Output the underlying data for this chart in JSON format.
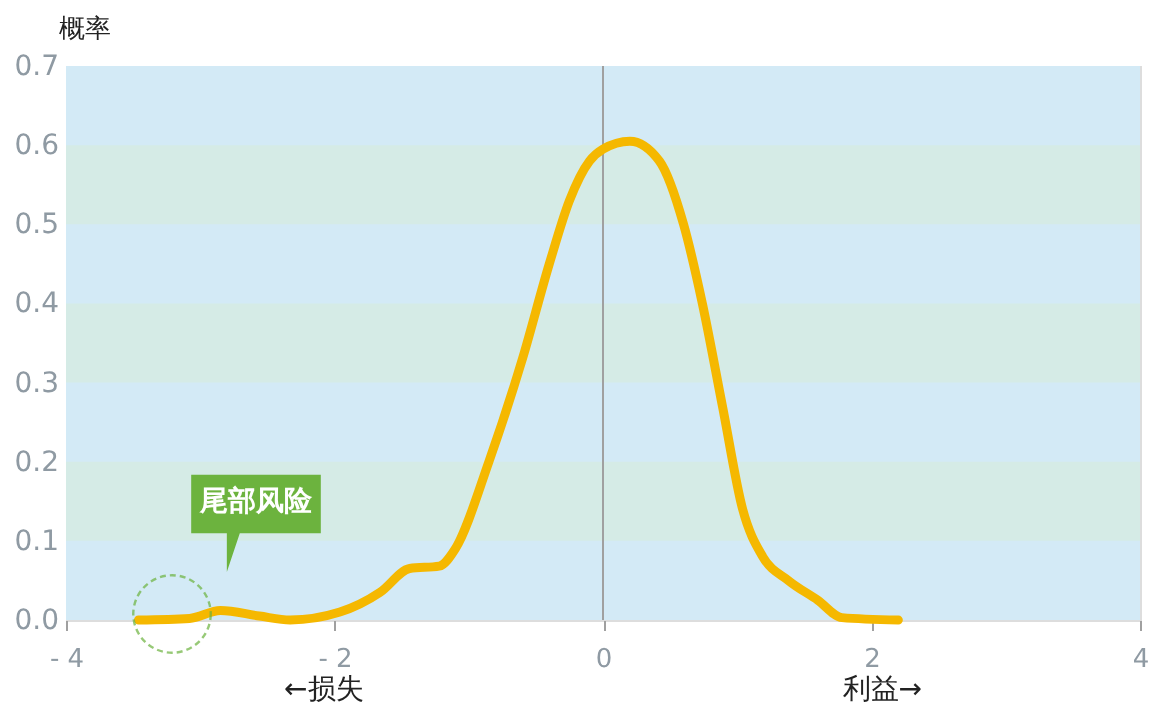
{
  "chart_data": {
    "type": "line",
    "ylabel": "概率",
    "x": [
      -3.46,
      -3.08,
      -2.85,
      -2.56,
      -2.33,
      -1.96,
      -1.66,
      -1.44,
      -1.22,
      -1.1,
      -0.85,
      -0.6,
      -0.4,
      -0.25,
      -0.1,
      0,
      0.2,
      0.42,
      0.6,
      0.74,
      0.89,
      1.04,
      1.19,
      1.38,
      1.6,
      1.78,
      2.2
    ],
    "series": [
      {
        "color": "#f5b800",
        "values": [
          0.0,
          0.002,
          0.012,
          0.005,
          0.0,
          0.01,
          0.035,
          0.065,
          0.068,
          0.09,
          0.2,
          0.33,
          0.45,
          0.53,
          0.58,
          0.595,
          0.605,
          0.58,
          0.5,
          0.4,
          0.27,
          0.14,
          0.08,
          0.05,
          0.025,
          0.003,
          0.0
        ]
      }
    ],
    "xlim": [
      -4,
      4
    ],
    "xticks": [
      {
        "value": -4,
        "label": "- 4"
      },
      {
        "value": -2,
        "label": "- 2"
      },
      0,
      2,
      4
    ],
    "ylim": [
      0,
      0.7
    ],
    "yticks": [
      {
        "value": 0,
        "label": "0.0"
      },
      0.1,
      0.2,
      0.3,
      0.4,
      0.5,
      0.6,
      0.7
    ],
    "marker": "none",
    "line_style": "solid",
    "bands": [
      {
        "axis": "y",
        "from": 0.1,
        "to": 0.2,
        "color": "#d5ebe6"
      },
      {
        "axis": "y",
        "from": 0.3,
        "to": 0.4,
        "color": "#d5ebe6"
      },
      {
        "axis": "y",
        "from": 0.5,
        "to": 0.6,
        "color": "#d5ebe6"
      }
    ],
    "ref_lines": [
      {
        "axis": "x",
        "value": 0,
        "color": "#a0a0a0"
      }
    ],
    "annotations": [
      "尾部风险",
      "←损失",
      "利益→"
    ]
  }
}
